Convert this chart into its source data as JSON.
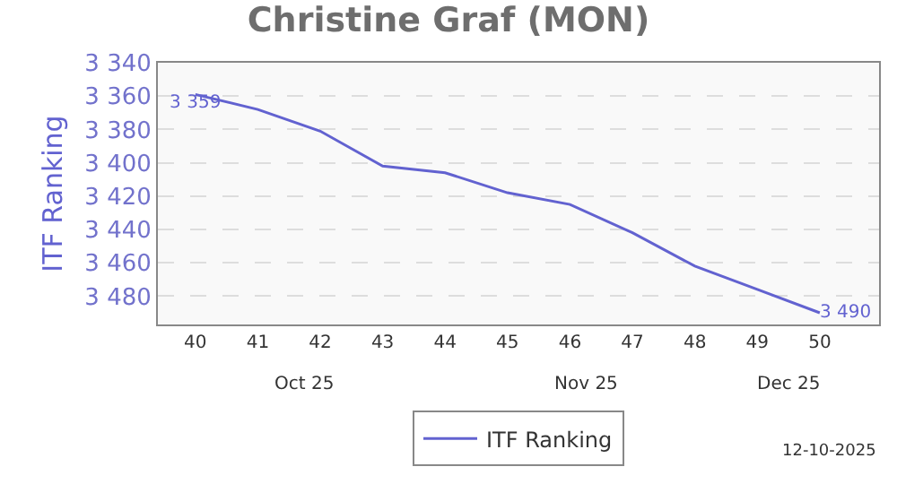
{
  "chart_data": {
    "type": "line",
    "title": "Christine Graf (MON)",
    "ylabel": "ITF Ranking",
    "categories": [
      "40",
      "41",
      "42",
      "43",
      "44",
      "45",
      "46",
      "47",
      "48",
      "49",
      "50"
    ],
    "series": [
      {
        "name": "ITF Ranking",
        "color": "#6262d0",
        "values": [
          3359,
          3368,
          3381,
          3402,
          3406,
          3418,
          3425,
          3442,
          3462,
          3476,
          3490
        ],
        "value_labels": [
          "3 359",
          null,
          null,
          null,
          null,
          null,
          null,
          null,
          null,
          null,
          "3 490"
        ]
      }
    ],
    "ylim": [
      3497,
      3340
    ],
    "yticks": [
      {
        "value": 3340,
        "label": "3 340"
      },
      {
        "value": 3360,
        "label": "3 360"
      },
      {
        "value": 3380,
        "label": "3 380"
      },
      {
        "value": 3400,
        "label": "3 400"
      },
      {
        "value": 3420,
        "label": "3 420"
      },
      {
        "value": 3440,
        "label": "3 440"
      },
      {
        "value": 3460,
        "label": "3 460"
      },
      {
        "value": 3480,
        "label": "3 480"
      }
    ],
    "annotations": [
      "Oct 25",
      "Nov 25",
      "Dec 25",
      "12-10-2025"
    ],
    "grid": "y",
    "legend": "bottom",
    "marker": "none",
    "line_style": "solid"
  }
}
